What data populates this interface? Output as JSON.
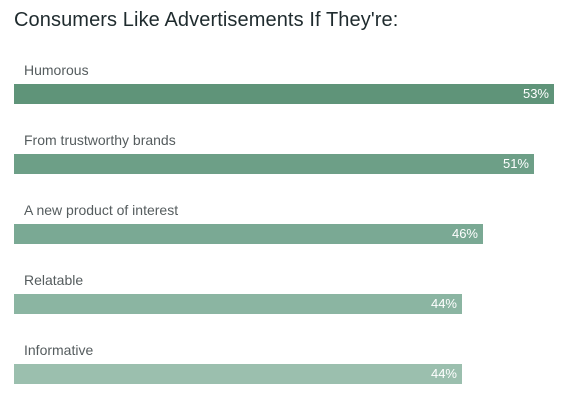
{
  "chart_data": {
    "type": "bar",
    "orientation": "horizontal",
    "title": "Consumers Like Advertisements If They're:",
    "categories": [
      "Humorous",
      "From trustworthy brands",
      "A new product of interest",
      "Relatable",
      "Informative"
    ],
    "values": [
      53,
      51,
      46,
      44,
      44
    ],
    "value_labels": [
      "53%",
      "51%",
      "46%",
      "44%",
      "44%"
    ],
    "colors": [
      "#5f9479",
      "#6d9f87",
      "#7aa994",
      "#8bb5a2",
      "#9bbfae"
    ],
    "xlim": [
      0,
      53
    ],
    "grid": false,
    "legend": "none"
  }
}
